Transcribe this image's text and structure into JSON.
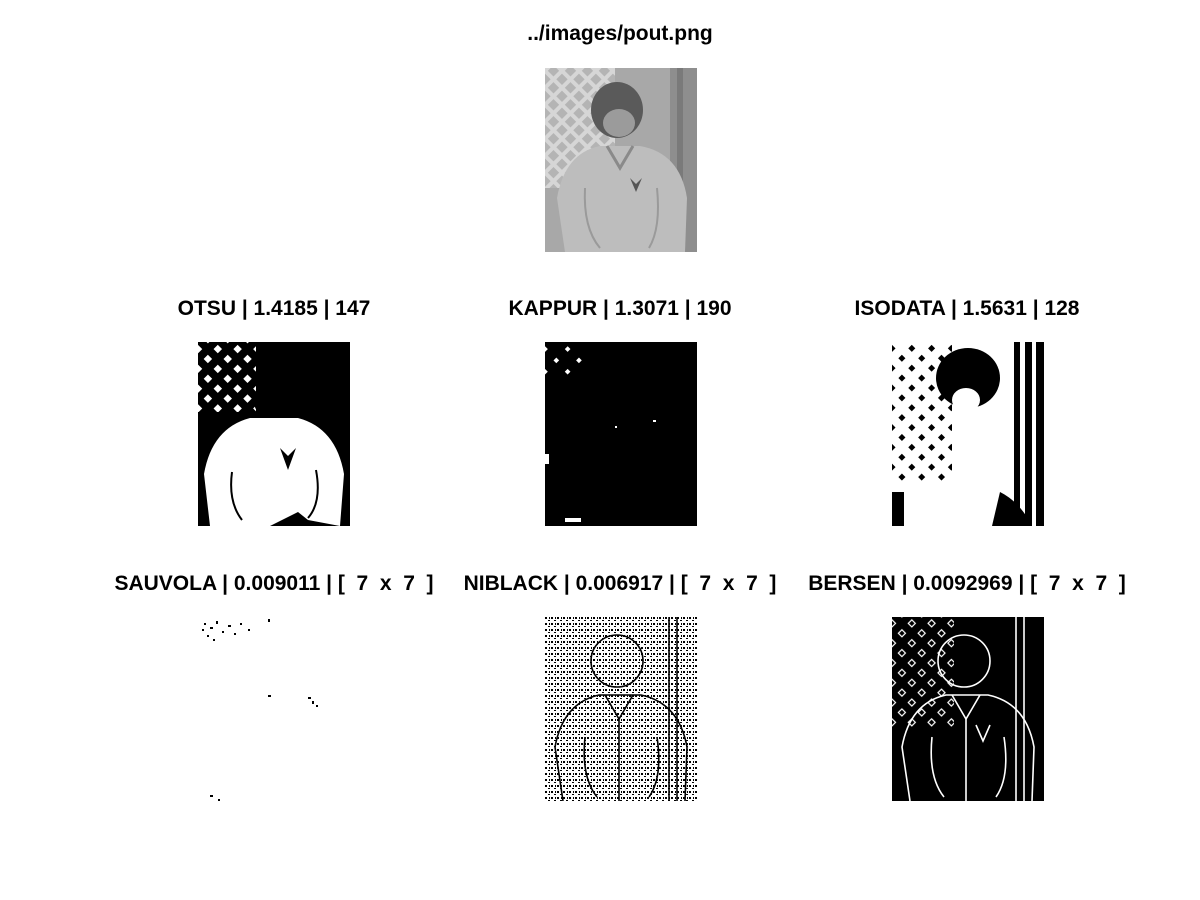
{
  "source": {
    "title": "../images/pout.png"
  },
  "global_methods": [
    {
      "title": "OTSU | 1.4185 | 147"
    },
    {
      "title": "KAPPUR | 1.3071 | 190"
    },
    {
      "title": "ISODATA | 1.5631 | 128"
    }
  ],
  "local_methods": [
    {
      "title": "SAUVOLA | 0.009011 | [  7  x  7  ]"
    },
    {
      "title": "NIBLACK | 0.006917 | [  7  x  7  ]"
    },
    {
      "title": "BERSEN | 0.0092969 | [  7  x  7  ]"
    }
  ]
}
